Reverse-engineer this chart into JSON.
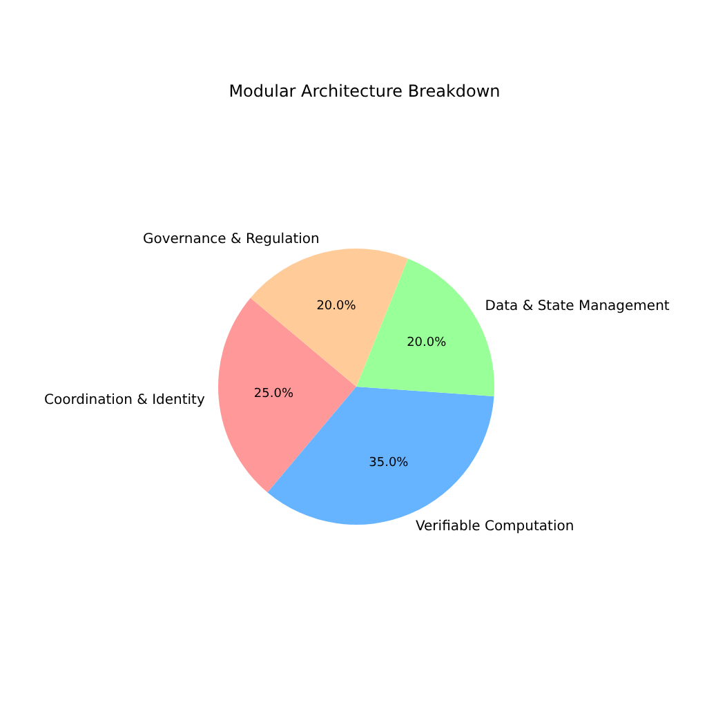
{
  "chart_data": {
    "type": "pie",
    "title": "Modular Architecture Breakdown",
    "categories": [
      "Coordination & Identity",
      "Verifiable Computation",
      "Data & State Management",
      "Governance & Regulation"
    ],
    "values": [
      25,
      35,
      20,
      20
    ],
    "colors": [
      "#ff9999",
      "#66b3ff",
      "#99ff99",
      "#ffcc99"
    ],
    "value_labels": [
      "25.0%",
      "35.0%",
      "20.0%",
      "20.0%"
    ]
  }
}
